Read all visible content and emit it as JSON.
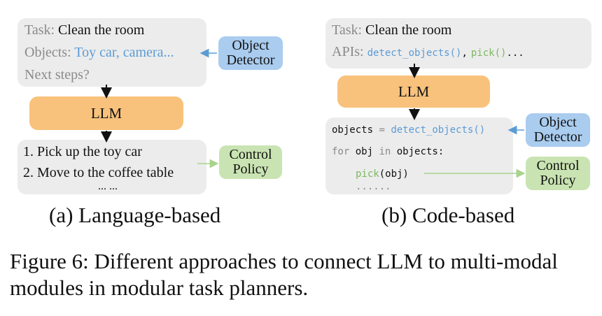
{
  "panel_a": {
    "task_label": "Task:",
    "task_value": "Clean the room",
    "objects_label": "Objects:",
    "objects_value": "Toy car, camera...",
    "next_steps": "Next steps?",
    "llm": "LLM",
    "step1": "1. Pick up the toy car",
    "step2": "2. Move to the coffee table",
    "ellipsis": "... ...",
    "object_detector_line1": "Object",
    "object_detector_line2": "Detector",
    "control_policy_line1": "Control",
    "control_policy_line2": "Policy",
    "caption": "(a) Language-based"
  },
  "panel_b": {
    "task_label": "Task:",
    "task_value": "Clean the room",
    "apis_label": "APIs:",
    "api1": "detect_objects()",
    "api_sep": ",",
    "api2": "pick()",
    "api_ellipsis": "...",
    "llm": "LLM",
    "code_var": "objects",
    "code_eq": " = ",
    "code_call": "detect_objects()",
    "code_for": "for",
    "code_obj": " obj ",
    "code_in": "in",
    "code_objects": " objects:",
    "code_pick": "pick",
    "code_pick_arg": "(obj)",
    "code_dots": "......",
    "object_detector_line1": "Object",
    "object_detector_line2": "Detector",
    "control_policy_line1": "Control",
    "control_policy_line2": "Policy",
    "caption": "(b) Code-based"
  },
  "figure_caption": {
    "line1": "Figure 6: Different approaches to connect LLM to multi-modal",
    "line2": "modules in modular task planners."
  },
  "colors": {
    "gray_box": "#ececec",
    "llm_box": "#f8c27c",
    "detector_box": "#a9ccef",
    "policy_box": "#c9e4b2",
    "blue_text": "#5b9bd5",
    "green_text": "#7cb860"
  }
}
